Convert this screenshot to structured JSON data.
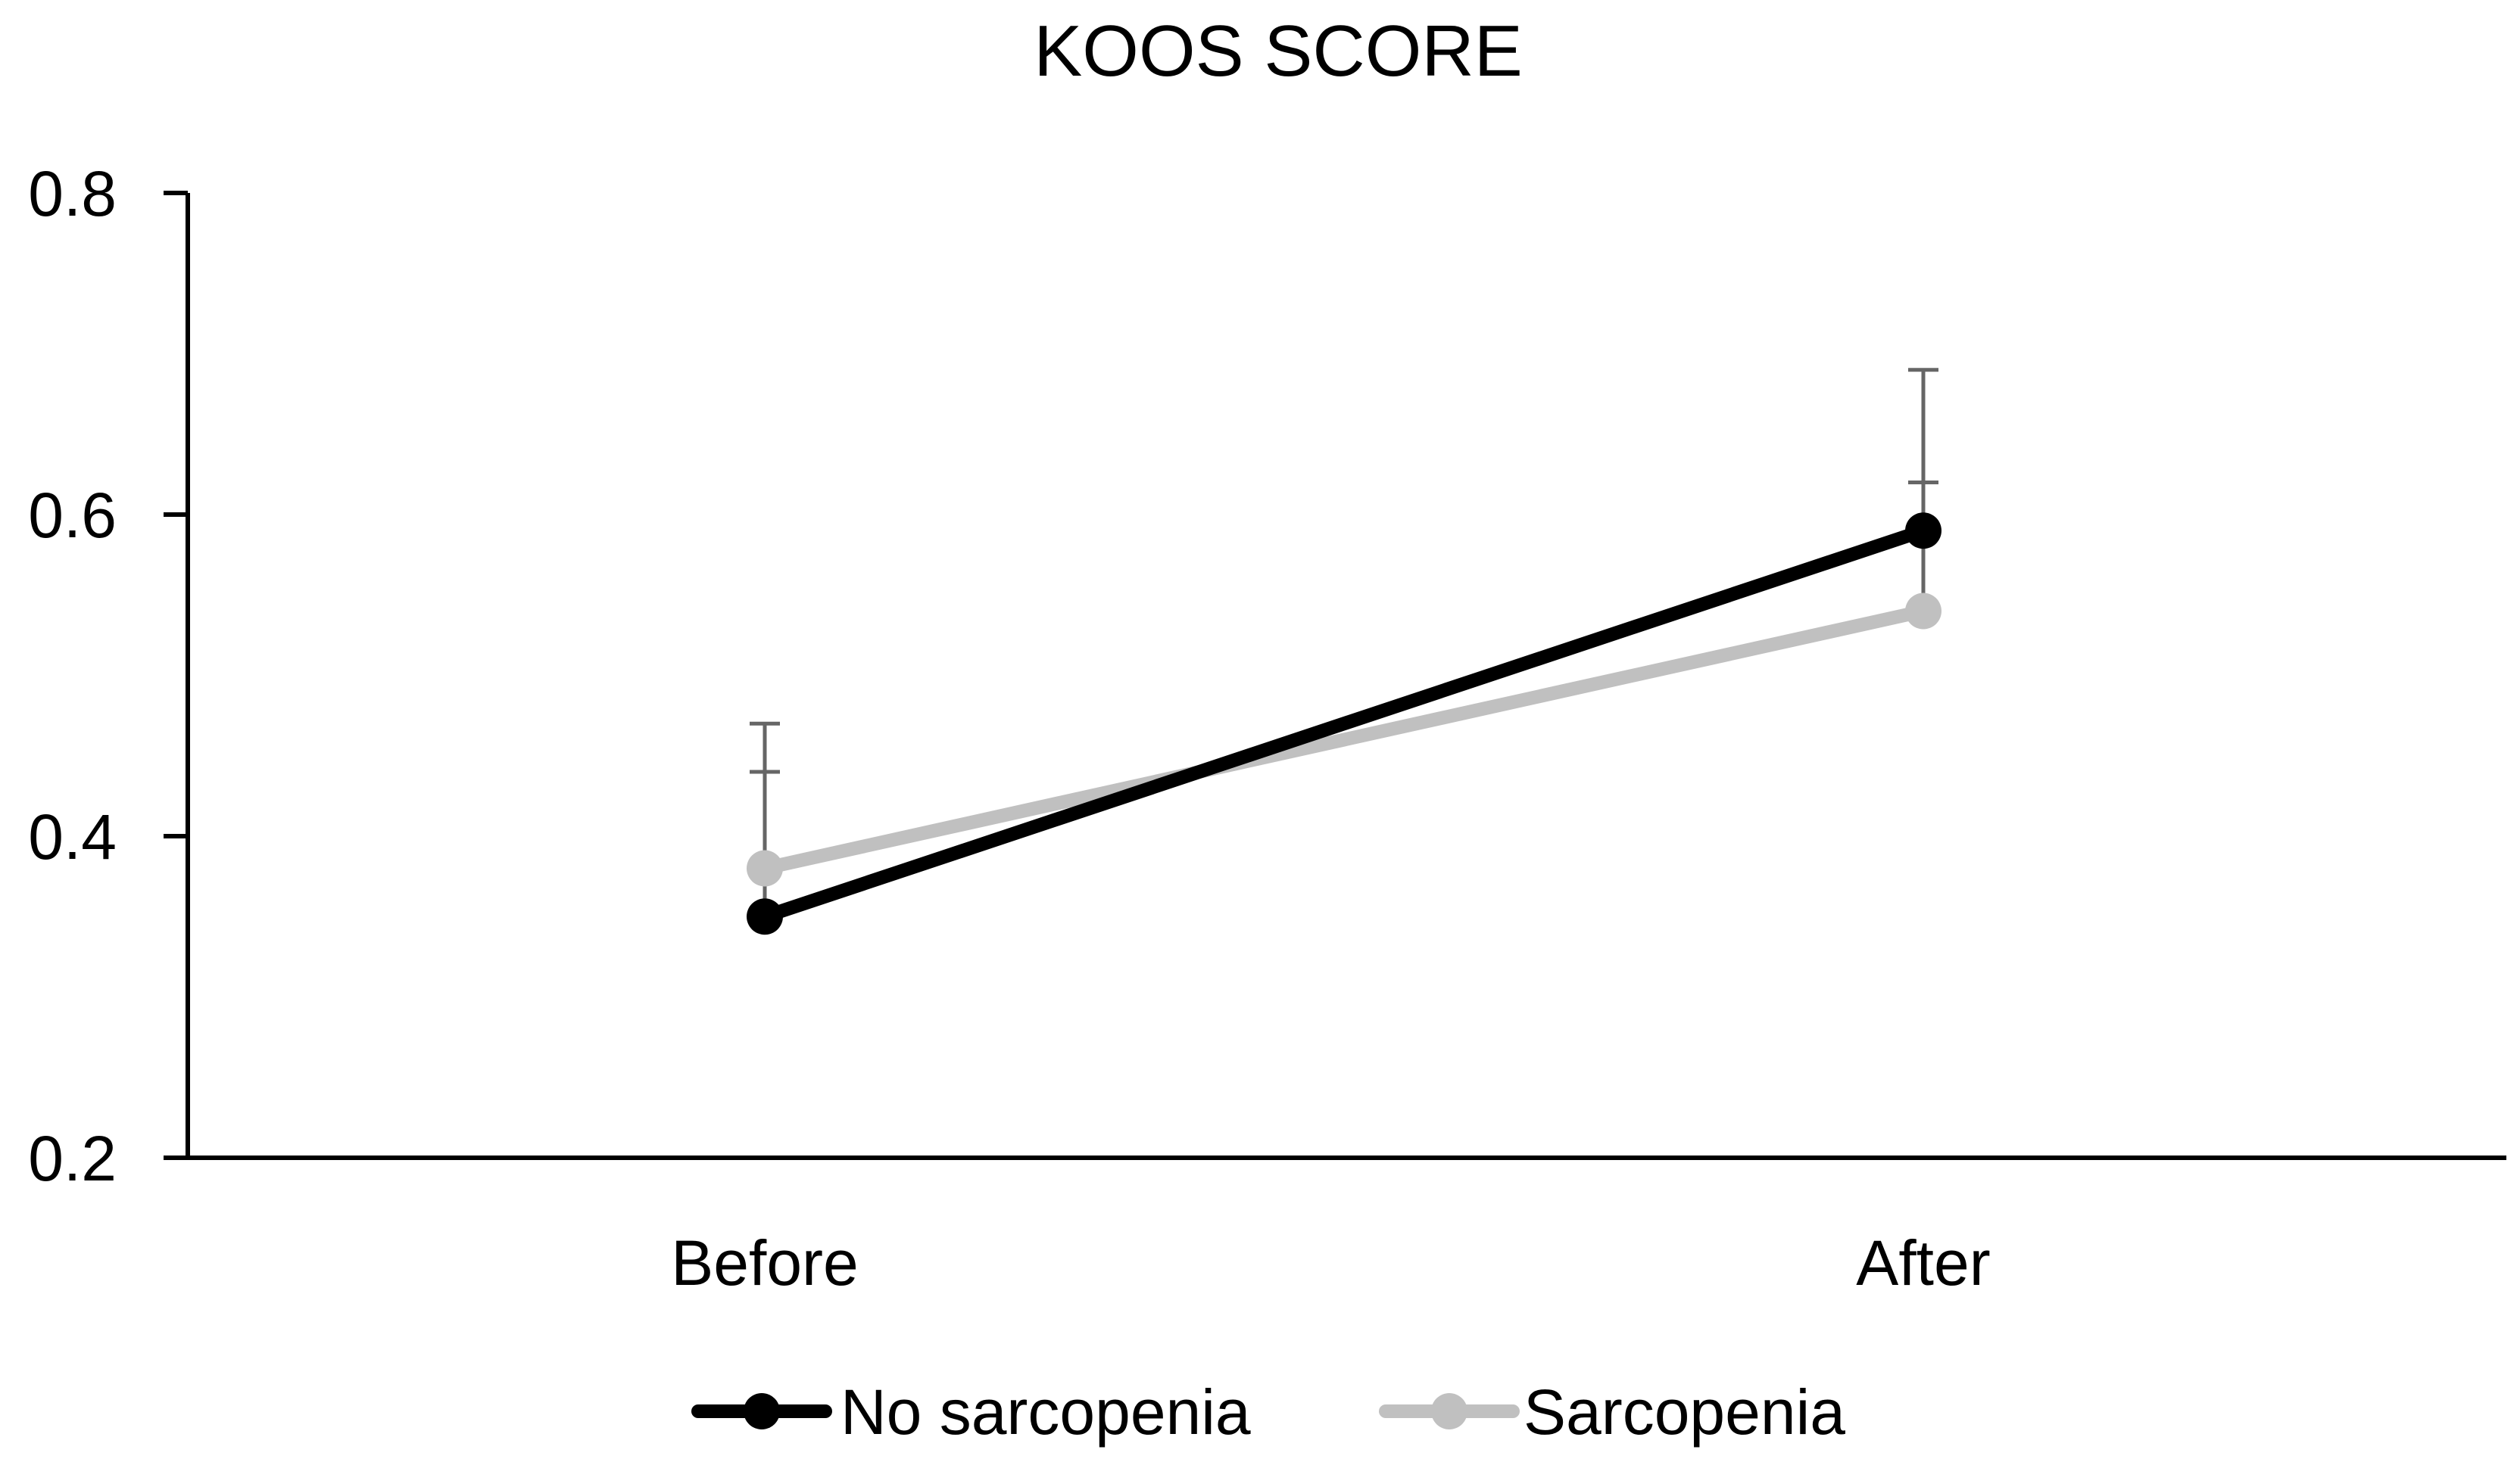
{
  "chart_data": {
    "type": "line",
    "title": "KOOS SCORE",
    "xlabel": "",
    "ylabel": "",
    "categories": [
      "Before",
      "After"
    ],
    "ylim": [
      0.2,
      0.8
    ],
    "yticks": [
      "0.2",
      "0.4",
      "0.6",
      "0.8"
    ],
    "grid": false,
    "legend_position": "bottom",
    "series": [
      {
        "name": "No sarcopenia",
        "values": [
          0.35,
          0.59
        ],
        "error_upper": [
          0.44,
          0.69
        ],
        "color": "#000000"
      },
      {
        "name": "Sarcopenia",
        "values": [
          0.38,
          0.54
        ],
        "error_upper": [
          0.47,
          0.62
        ],
        "color": "#c0c0c0"
      }
    ],
    "error_bar_color": "#666666",
    "axis_color": "#000000"
  }
}
